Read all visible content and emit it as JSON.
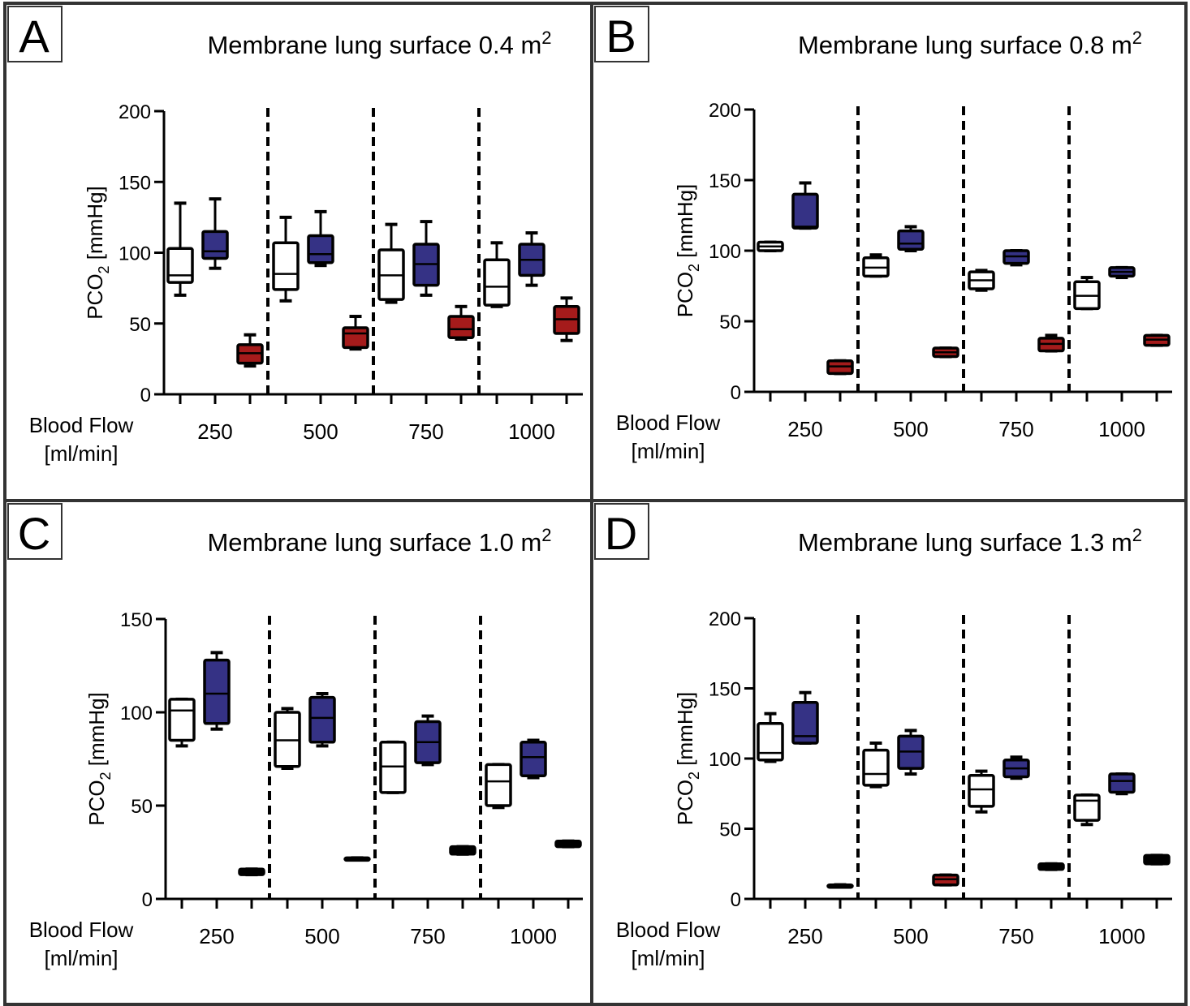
{
  "x_axis_label_line1": "Blood Flow",
  "x_axis_label_line2": "[ml/min]",
  "y_axis_label_main": "PCO",
  "y_axis_label_sub": "2",
  "y_axis_label_unit": " [mmHg]",
  "colors": {
    "white_box": "#ffffff",
    "blue_box": "#353285",
    "red_box": "#a51b1b",
    "black_box": "#000000"
  },
  "panels": [
    {
      "letter": "A",
      "title_main": "Membrane lung surface 0.4 m",
      "title_sup": "2"
    },
    {
      "letter": "B",
      "title_main": "Membrane lung surface 0.8 m",
      "title_sup": "2"
    },
    {
      "letter": "C",
      "title_main": "Membrane lung surface 1.0 m",
      "title_sup": "2"
    },
    {
      "letter": "D",
      "title_main": "Membrane lung surface 1.3 m",
      "title_sup": "2"
    }
  ],
  "chart_data": [
    {
      "type": "box",
      "panel": "A",
      "ylim": [
        0,
        200
      ],
      "yticks": [
        0,
        50,
        100,
        150,
        200
      ],
      "categories": [
        "250",
        "500",
        "750",
        "1000"
      ],
      "boxes": [
        {
          "group": "250",
          "color": "white",
          "min": 70,
          "q1": 79,
          "median": 84,
          "q3": 103,
          "max": 135
        },
        {
          "group": "250",
          "color": "blue",
          "min": 89,
          "q1": 96,
          "median": 101,
          "q3": 115,
          "max": 138
        },
        {
          "group": "250",
          "color": "red",
          "min": 20,
          "q1": 22,
          "median": 29,
          "q3": 35,
          "max": 42
        },
        {
          "group": "500",
          "color": "white",
          "min": 66,
          "q1": 74,
          "median": 85,
          "q3": 107,
          "max": 125
        },
        {
          "group": "500",
          "color": "blue",
          "min": 91,
          "q1": 93,
          "median": 99,
          "q3": 112,
          "max": 129
        },
        {
          "group": "500",
          "color": "red",
          "min": 32,
          "q1": 33,
          "median": 43,
          "q3": 47,
          "max": 55
        },
        {
          "group": "750",
          "color": "white",
          "min": 65,
          "q1": 67,
          "median": 84,
          "q3": 102,
          "max": 120
        },
        {
          "group": "750",
          "color": "blue",
          "min": 70,
          "q1": 77,
          "median": 92,
          "q3": 106,
          "max": 122
        },
        {
          "group": "750",
          "color": "red",
          "min": 39,
          "q1": 40,
          "median": 46,
          "q3": 55,
          "max": 62
        },
        {
          "group": "1000",
          "color": "white",
          "min": 62,
          "q1": 63,
          "median": 76,
          "q3": 95,
          "max": 107
        },
        {
          "group": "1000",
          "color": "blue",
          "min": 77,
          "q1": 84,
          "median": 95,
          "q3": 106,
          "max": 114
        },
        {
          "group": "1000",
          "color": "red",
          "min": 38,
          "q1": 43,
          "median": 53,
          "q3": 62,
          "max": 68
        }
      ]
    },
    {
      "type": "box",
      "panel": "B",
      "ylim": [
        0,
        200
      ],
      "yticks": [
        0,
        50,
        100,
        150,
        200
      ],
      "categories": [
        "250",
        "500",
        "750",
        "1000"
      ],
      "boxes": [
        {
          "group": "250",
          "color": "white",
          "min": 100,
          "q1": 100,
          "median": 103,
          "q3": 106,
          "max": 106
        },
        {
          "group": "250",
          "color": "blue",
          "min": 116,
          "q1": 116,
          "median": 117,
          "q3": 140,
          "max": 148
        },
        {
          "group": "250",
          "color": "red",
          "min": 13,
          "q1": 13,
          "median": 18,
          "q3": 22,
          "max": 22
        },
        {
          "group": "500",
          "color": "white",
          "min": 82,
          "q1": 82,
          "median": 88,
          "q3": 95,
          "max": 97
        },
        {
          "group": "500",
          "color": "blue",
          "min": 100,
          "q1": 101,
          "median": 105,
          "q3": 114,
          "max": 117
        },
        {
          "group": "500",
          "color": "red",
          "min": 25,
          "q1": 25,
          "median": 28,
          "q3": 31,
          "max": 31
        },
        {
          "group": "750",
          "color": "white",
          "min": 72,
          "q1": 73,
          "median": 79,
          "q3": 85,
          "max": 86
        },
        {
          "group": "750",
          "color": "blue",
          "min": 90,
          "q1": 91,
          "median": 96,
          "q3": 100,
          "max": 100
        },
        {
          "group": "750",
          "color": "red",
          "min": 29,
          "q1": 29,
          "median": 34,
          "q3": 38,
          "max": 40
        },
        {
          "group": "1000",
          "color": "white",
          "min": 59,
          "q1": 59,
          "median": 68,
          "q3": 78,
          "max": 81
        },
        {
          "group": "1000",
          "color": "blue",
          "min": 81,
          "q1": 82,
          "median": 85,
          "q3": 88,
          "max": 88
        },
        {
          "group": "1000",
          "color": "red",
          "min": 33,
          "q1": 33,
          "median": 37,
          "q3": 40,
          "max": 40
        }
      ]
    },
    {
      "type": "box",
      "panel": "C",
      "ylim": [
        0,
        150
      ],
      "yticks": [
        0,
        50,
        100,
        150
      ],
      "categories": [
        "250",
        "500",
        "750",
        "1000"
      ],
      "boxes": [
        {
          "group": "250",
          "color": "white",
          "min": 82,
          "q1": 85,
          "median": 101,
          "q3": 107,
          "max": 107
        },
        {
          "group": "250",
          "color": "blue",
          "min": 91,
          "q1": 94,
          "median": 110,
          "q3": 128,
          "max": 132
        },
        {
          "group": "250",
          "color": "black",
          "min": 13,
          "q1": 13,
          "median": 14,
          "q3": 16,
          "max": 16
        },
        {
          "group": "500",
          "color": "white",
          "min": 70,
          "q1": 71,
          "median": 85,
          "q3": 100,
          "max": 102
        },
        {
          "group": "500",
          "color": "blue",
          "min": 82,
          "q1": 84,
          "median": 97,
          "q3": 108,
          "max": 110
        },
        {
          "group": "500",
          "color": "black",
          "min": 21,
          "q1": 21,
          "median": 22,
          "q3": 22,
          "max": 22
        },
        {
          "group": "750",
          "color": "white",
          "min": 57,
          "q1": 57,
          "median": 71,
          "q3": 84,
          "max": 84
        },
        {
          "group": "750",
          "color": "blue",
          "min": 72,
          "q1": 73,
          "median": 84,
          "q3": 95,
          "max": 98
        },
        {
          "group": "750",
          "color": "black",
          "min": 24,
          "q1": 24,
          "median": 26,
          "q3": 28,
          "max": 28
        },
        {
          "group": "1000",
          "color": "white",
          "min": 49,
          "q1": 50,
          "median": 63,
          "q3": 72,
          "max": 72
        },
        {
          "group": "1000",
          "color": "blue",
          "min": 65,
          "q1": 66,
          "median": 76,
          "q3": 84,
          "max": 85
        },
        {
          "group": "1000",
          "color": "black",
          "min": 28,
          "q1": 28,
          "median": 29,
          "q3": 31,
          "max": 31
        }
      ]
    },
    {
      "type": "box",
      "panel": "D",
      "ylim": [
        0,
        200
      ],
      "yticks": [
        0,
        50,
        100,
        150,
        200
      ],
      "categories": [
        "250",
        "500",
        "750",
        "1000"
      ],
      "boxes": [
        {
          "group": "250",
          "color": "white",
          "min": 98,
          "q1": 99,
          "median": 104,
          "q3": 125,
          "max": 132
        },
        {
          "group": "250",
          "color": "blue",
          "min": 111,
          "q1": 111,
          "median": 116,
          "q3": 140,
          "max": 147
        },
        {
          "group": "250",
          "color": "black",
          "min": 10,
          "q1": 10,
          "median": 10,
          "q3": 10,
          "max": 10
        },
        {
          "group": "500",
          "color": "white",
          "min": 80,
          "q1": 81,
          "median": 89,
          "q3": 106,
          "max": 111
        },
        {
          "group": "500",
          "color": "blue",
          "min": 89,
          "q1": 93,
          "median": 105,
          "q3": 116,
          "max": 120
        },
        {
          "group": "500",
          "color": "red",
          "min": 10,
          "q1": 10,
          "median": 14,
          "q3": 17,
          "max": 17
        },
        {
          "group": "750",
          "color": "white",
          "min": 62,
          "q1": 66,
          "median": 78,
          "q3": 88,
          "max": 91
        },
        {
          "group": "750",
          "color": "blue",
          "min": 86,
          "q1": 87,
          "median": 93,
          "q3": 99,
          "max": 101
        },
        {
          "group": "750",
          "color": "black",
          "min": 21,
          "q1": 21,
          "median": 23,
          "q3": 25,
          "max": 25
        },
        {
          "group": "1000",
          "color": "white",
          "min": 53,
          "q1": 56,
          "median": 70,
          "q3": 74,
          "max": 74
        },
        {
          "group": "1000",
          "color": "blue",
          "min": 75,
          "q1": 76,
          "median": 84,
          "q3": 89,
          "max": 89
        },
        {
          "group": "1000",
          "color": "black",
          "min": 25,
          "q1": 25,
          "median": 28,
          "q3": 31,
          "max": 31
        }
      ]
    }
  ]
}
